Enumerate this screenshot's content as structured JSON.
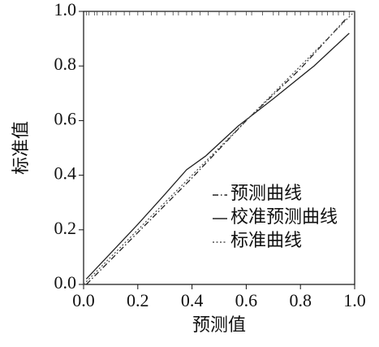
{
  "chart_data": {
    "type": "line",
    "xlabel": "预测值",
    "ylabel": "标准值",
    "xlim": [
      0,
      1
    ],
    "ylim": [
      0,
      1
    ],
    "xticks": [
      {
        "value": 0,
        "label": "0.0"
      },
      0.2,
      0.4,
      0.6,
      0.8,
      {
        "value": 1,
        "label": "1.0"
      }
    ],
    "yticks": [
      {
        "value": 0,
        "label": "0.0"
      },
      0.2,
      0.4,
      0.6,
      0.8,
      {
        "value": 1,
        "label": "1.0"
      }
    ],
    "series": [
      {
        "name": "预测曲线",
        "color": "#222222",
        "linestyle": "dashdot",
        "x": [
          0.01,
          0.2,
          0.4,
          0.6,
          0.8,
          0.97
        ],
        "values": [
          0.0,
          0.19,
          0.39,
          0.6,
          0.79,
          0.975
        ]
      },
      {
        "name": "校准预测曲线",
        "color": "#222222",
        "linestyle": "solid",
        "x": [
          0.01,
          0.2,
          0.3,
          0.38,
          0.45,
          0.57,
          0.7,
          0.85,
          0.98
        ],
        "values": [
          0.02,
          0.22,
          0.33,
          0.42,
          0.47,
          0.58,
          0.68,
          0.8,
          0.92
        ]
      },
      {
        "name": "标准曲线",
        "color": "#555555",
        "linestyle": "dotted",
        "x": [
          0,
          1
        ],
        "values": [
          0,
          1
        ]
      }
    ],
    "rug": [
      0.01,
      0.02,
      0.04,
      0.05,
      0.07,
      0.09,
      0.1,
      0.12,
      0.15,
      0.17,
      0.2,
      0.22,
      0.25,
      0.27,
      0.3,
      0.33,
      0.35,
      0.38,
      0.4,
      0.43,
      0.46,
      0.5,
      0.53,
      0.56,
      0.6,
      0.62,
      0.66,
      0.7,
      0.72,
      0.75,
      0.78,
      0.8,
      0.83,
      0.86,
      0.88,
      0.9,
      0.92,
      0.94,
      0.96,
      0.98
    ],
    "legend": "lower right"
  }
}
